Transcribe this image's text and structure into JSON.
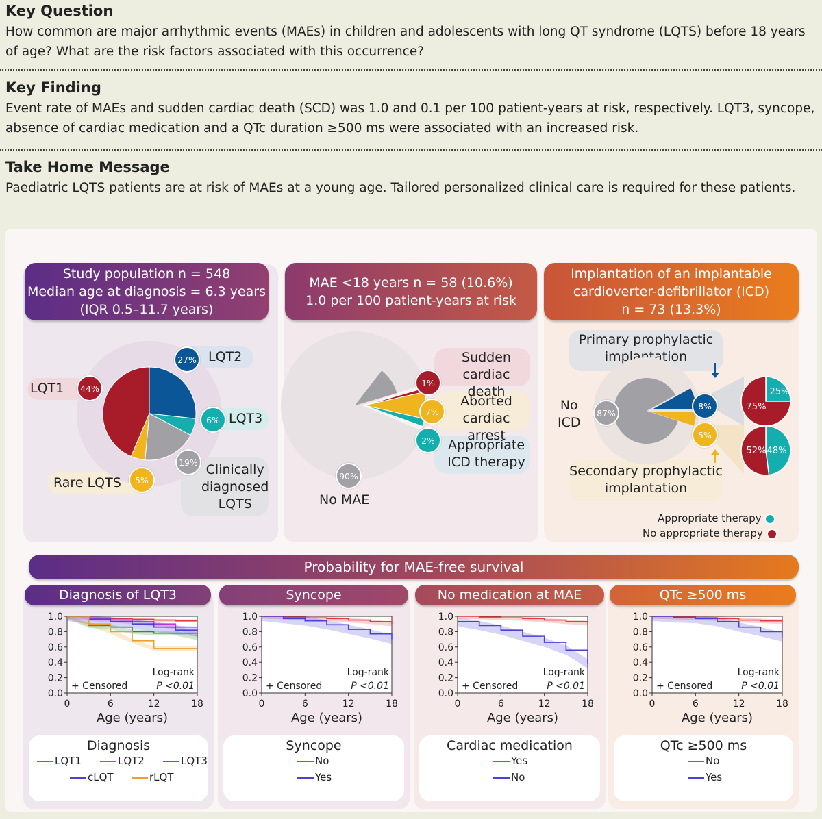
{
  "key_question": {
    "heading": "Key Question",
    "text": "How common are major arrhythmic events (MAEs) in children and adolescents with long QT syndrome (LQTS) before 18 years of age? What are the risk factors associated with this occurrence?"
  },
  "key_finding": {
    "heading": "Key Finding",
    "text": "Event rate of MAEs and sudden cardiac death (SCD) was 1.0 and 0.1 per 100 patient-years at risk, respectively. LQT3, syncope, absence of cardiac medication and a QTc duration ≥500 ms were associated with an increased risk."
  },
  "take_home": {
    "heading": "Take Home Message",
    "text": "Paediatric LQTS patients are at risk of MAEs at a young age. Tailored personalized clinical care is required for these patients."
  },
  "population": {
    "header": [
      "Study population n = 548",
      "Median age at diagnosis = 6.3 years",
      "(IQR 0.5–11.7 years)"
    ],
    "slices": [
      {
        "label": "LQT1",
        "pct": 44,
        "text": "44%",
        "color": "#a81c2a"
      },
      {
        "label": "LQT2",
        "pct": 27,
        "text": "27%",
        "color": "#0a5696"
      },
      {
        "label": "LQT3",
        "pct": 6,
        "text": "6%",
        "color": "#15aeae"
      },
      {
        "label": "Clinically diagnosed LQTS",
        "pct": 19,
        "text": "19%",
        "color": "#a0a0a5"
      },
      {
        "label": "Rare LQTS",
        "pct": 5,
        "text": "5%",
        "color": "#f0b41e"
      }
    ],
    "label_lqt1": "LQT1",
    "label_lqt2": "LQT2",
    "label_lqt3": "LQT3",
    "label_clin": [
      "Clinically",
      "diagnosed",
      "LQTS"
    ],
    "label_rare": "Rare LQTS"
  },
  "mae": {
    "header": [
      "MAE <18 years n = 58 (10.6%)",
      "1.0 per 100 patient-years at risk"
    ],
    "no_mae": {
      "pct": 90,
      "text": "90%",
      "label": "No MAE"
    },
    "scd": {
      "pct": 1,
      "text": "1%",
      "label": [
        "Sudden",
        "cardiac death"
      ]
    },
    "aca": {
      "pct": 7,
      "text": "7%",
      "label": [
        "Aborted",
        "cardiac arrest"
      ]
    },
    "icd": {
      "pct": 2,
      "text": "2%",
      "label": [
        "Appropriate",
        "ICD therapy"
      ]
    }
  },
  "icd": {
    "header": [
      "Implantation of an implantable",
      "cardioverter-defibrillator (ICD)",
      "n = 73 (13.3%)"
    ],
    "no_icd": {
      "pct": 87,
      "text": "87%",
      "label": [
        "No",
        "ICD"
      ]
    },
    "primary": {
      "pct": 8,
      "text": "8%",
      "label": [
        "Primary prophylactic",
        "implantation"
      ]
    },
    "secondary": {
      "pct": 5,
      "text": "5%",
      "label": [
        "Secondary prophylactic",
        "implantation"
      ]
    },
    "primary_split": {
      "appropriate": 25,
      "appropriate_text": "25%",
      "none": 75,
      "none_text": "75%"
    },
    "secondary_split": {
      "appropriate": 48,
      "appropriate_text": "48%",
      "none": 52,
      "none_text": "52%"
    },
    "legend_appropriate": "Appropriate therapy",
    "legend_none": "No appropriate therapy"
  },
  "survival": {
    "title": "Probability for MAE-free survival",
    "xlabel": "Age (years)",
    "censored": "+ Censored",
    "logrank": "Log-rank",
    "pvalue": "P <0.01",
    "panels": [
      {
        "title": "Diagnosis of LQT3",
        "legend_title": "Diagnosis",
        "items": [
          "LQT1",
          "LQT2",
          "LQT3",
          "cLQT",
          "rLQT"
        ]
      },
      {
        "title": "Syncope",
        "legend_title": "Syncope",
        "items": [
          "No",
          "Yes"
        ]
      },
      {
        "title": "No medication at MAE",
        "legend_title": "Cardiac medication",
        "items": [
          "Yes",
          "No"
        ]
      },
      {
        "title": "QTc ≥500 ms",
        "legend_title": "QTc ≥500 ms",
        "items": [
          "No",
          "Yes"
        ]
      }
    ]
  },
  "chart_data": [
    {
      "type": "line",
      "title": "Diagnosis of LQT3",
      "xlabel": "Age (years)",
      "ylabel": "",
      "xlim": [
        0,
        18
      ],
      "ylim": [
        0,
        1
      ],
      "xticks": [
        "0",
        "6",
        "12",
        "18"
      ],
      "yticks": [
        "0.0",
        "0.2",
        "0.4",
        "0.6",
        "0.8",
        "1.0"
      ],
      "x": [
        0,
        3,
        6,
        9,
        12,
        15,
        18
      ],
      "series": [
        {
          "name": "LQT1",
          "color": "#e8383d",
          "values": [
            1.0,
            0.98,
            0.97,
            0.96,
            0.95,
            0.94,
            0.94
          ]
        },
        {
          "name": "LQT2",
          "color": "#c23bd6",
          "values": [
            1.0,
            0.97,
            0.95,
            0.93,
            0.9,
            0.86,
            0.76
          ]
        },
        {
          "name": "LQT3",
          "color": "#2f8f2f",
          "values": [
            1.0,
            0.88,
            0.86,
            0.8,
            0.78,
            0.78,
            0.72
          ]
        },
        {
          "name": "cLQT",
          "color": "#4b40d8",
          "values": [
            1.0,
            0.96,
            0.93,
            0.9,
            0.86,
            0.82,
            0.8
          ]
        },
        {
          "name": "rLQT",
          "color": "#e8a02a",
          "values": [
            1.0,
            0.9,
            0.8,
            0.68,
            0.58,
            0.58,
            0.58
          ]
        }
      ]
    },
    {
      "type": "line",
      "title": "Syncope",
      "xlabel": "Age (years)",
      "ylabel": "",
      "xlim": [
        0,
        18
      ],
      "ylim": [
        0,
        1
      ],
      "xticks": [
        "0",
        "6",
        "12",
        "18"
      ],
      "yticks": [
        "0.0",
        "0.2",
        "0.4",
        "0.6",
        "0.8",
        "1.0"
      ],
      "x": [
        0,
        3,
        6,
        9,
        12,
        15,
        18
      ],
      "series": [
        {
          "name": "No",
          "color": "#e8383d",
          "values": [
            1.0,
            0.99,
            0.98,
            0.97,
            0.95,
            0.93,
            0.9
          ]
        },
        {
          "name": "Yes",
          "color": "#4b40d8",
          "values": [
            1.0,
            0.97,
            0.94,
            0.89,
            0.83,
            0.77,
            0.7
          ]
        }
      ]
    },
    {
      "type": "line",
      "title": "No medication at MAE",
      "xlabel": "Age (years)",
      "ylabel": "",
      "xlim": [
        0,
        18
      ],
      "ylim": [
        0,
        1
      ],
      "xticks": [
        "0",
        "6",
        "12",
        "18"
      ],
      "yticks": [
        "0.0",
        "0.2",
        "0.4",
        "0.6",
        "0.8",
        "1.0"
      ],
      "x": [
        0,
        3,
        6,
        9,
        12,
        15,
        18
      ],
      "series": [
        {
          "name": "Yes",
          "color": "#e8383d",
          "values": [
            1.0,
            0.99,
            0.98,
            0.97,
            0.95,
            0.93,
            0.91
          ]
        },
        {
          "name": "No",
          "color": "#4b40d8",
          "values": [
            0.93,
            0.88,
            0.82,
            0.74,
            0.66,
            0.56,
            0.38
          ]
        }
      ]
    },
    {
      "type": "line",
      "title": "QTc ≥500 ms",
      "xlabel": "Age (years)",
      "ylabel": "",
      "xlim": [
        0,
        18
      ],
      "ylim": [
        0,
        1
      ],
      "xticks": [
        "0",
        "6",
        "12",
        "18"
      ],
      "yticks": [
        "0.0",
        "0.2",
        "0.4",
        "0.6",
        "0.8",
        "1.0"
      ],
      "x": [
        0,
        3,
        6,
        9,
        12,
        15,
        18
      ],
      "series": [
        {
          "name": "No",
          "color": "#e8383d",
          "values": [
            1.0,
            0.99,
            0.98,
            0.97,
            0.95,
            0.94,
            0.93
          ]
        },
        {
          "name": "Yes",
          "color": "#4b40d8",
          "values": [
            1.0,
            0.98,
            0.97,
            0.93,
            0.86,
            0.8,
            0.73
          ]
        }
      ]
    }
  ]
}
